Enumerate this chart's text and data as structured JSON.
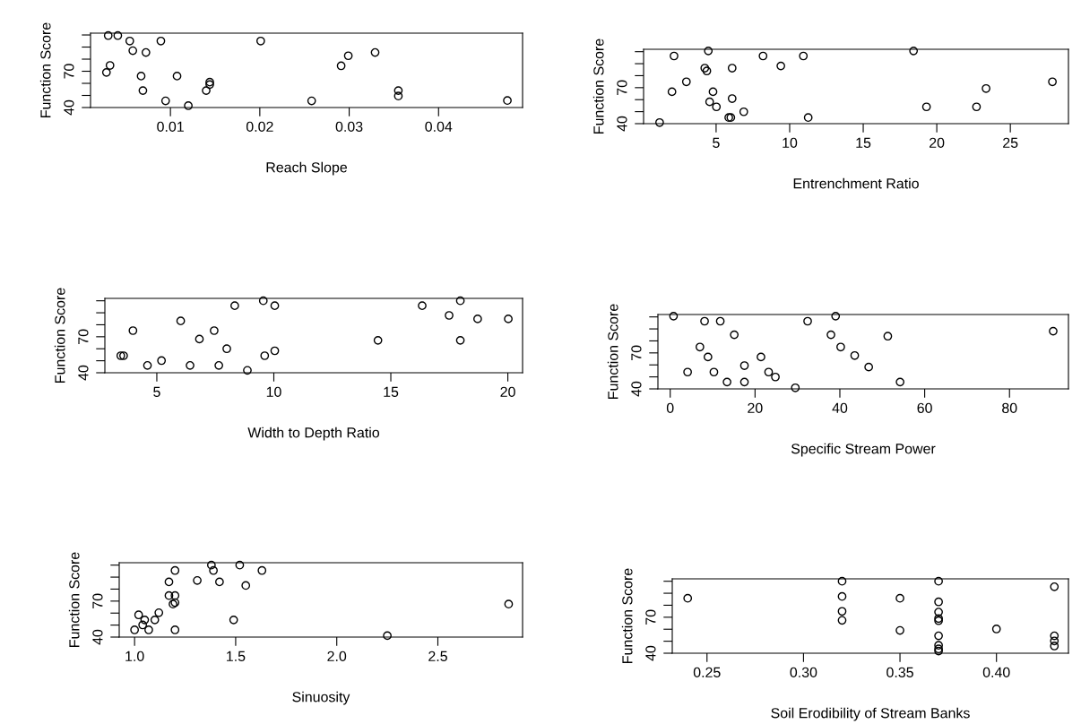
{
  "chart_data": [
    {
      "type": "scatter",
      "xlabel": "Reach Slope",
      "ylabel": "Function Score",
      "xlim": [
        0.00106,
        0.0494
      ],
      "xticks": [
        0.01,
        0.02,
        0.03,
        0.04
      ],
      "ylim": [
        40,
        101.5
      ],
      "yticks": [
        40,
        {
          "value": 50,
          "label": null
        },
        {
          "value": 60,
          "label": null
        },
        70,
        {
          "value": 80,
          "label": null
        },
        {
          "value": 90,
          "label": null
        },
        {
          "value": 100,
          "label": null
        }
      ],
      "marker": "circle",
      "series": [
        {
          "color": "#000000",
          "x": [
            0.00304,
            0.00411,
            0.00545,
            0.00579,
            0.00726,
            0.00893,
            0.0201,
            0.00324,
            0.00284,
            0.00672,
            0.01074,
            0.00692,
            0.00946,
            0.012,
            0.014,
            0.0144,
            0.0144,
            0.0291,
            0.0299,
            0.0329,
            0.0258,
            0.0355,
            0.0355,
            0.0477
          ],
          "values": [
            99.5,
            99.5,
            95,
            87,
            85.5,
            95,
            95,
            74.8,
            69,
            66,
            66,
            54,
            45.5,
            41.5,
            54,
            61,
            59,
            74.5,
            82.8,
            85.5,
            45.5,
            54,
            49.5,
            45.8
          ]
        }
      ]
    },
    {
      "type": "scatter",
      "xlabel": "Entrenchment Ratio",
      "ylabel": "Function Score",
      "xlim": [
        0.07,
        28.95
      ],
      "xticks": [
        5,
        10,
        15,
        20,
        25
      ],
      "ylim": [
        40,
        102
      ],
      "yticks": [
        40,
        {
          "value": 50,
          "label": null
        },
        {
          "value": 60,
          "label": null
        },
        70,
        {
          "value": 80,
          "label": null
        },
        {
          "value": 90,
          "label": null
        },
        {
          "value": 100,
          "label": null
        }
      ],
      "marker": "circle",
      "series": [
        {
          "color": "#000000",
          "x": [
            1.16,
            2.14,
            4.47,
            8.19,
            10.93,
            18.42,
            4.23,
            4.37,
            6.09,
            9.4,
            2.98,
            2.0,
            4.79,
            6.09,
            4.56,
            5.02,
            6.88,
            5.86,
            6.0,
            11.26,
            19.3,
            22.7,
            23.35,
            27.86
          ],
          "values": [
            40.9,
            96.4,
            100.6,
            96.4,
            96.4,
            100.6,
            86.3,
            83.9,
            86.3,
            88.1,
            74.9,
            66.6,
            66.6,
            60.9,
            58.2,
            54.0,
            49.9,
            45.1,
            45.1,
            45.1,
            54.0,
            54.0,
            69.3,
            74.9
          ]
        }
      ]
    },
    {
      "type": "scatter",
      "xlabel": "Width to Depth Ratio",
      "ylabel": "Function Score",
      "xlim": [
        2.78,
        20.63
      ],
      "xticks": [
        5,
        10,
        15,
        20
      ],
      "ylim": [
        40,
        102
      ],
      "yticks": [
        40,
        {
          "value": 50,
          "label": null
        },
        {
          "value": 60,
          "label": null
        },
        70,
        {
          "value": 80,
          "label": null
        },
        {
          "value": 90,
          "label": null
        },
        {
          "value": 100,
          "label": null
        }
      ],
      "marker": "circle",
      "series": [
        {
          "color": "#000000",
          "x": [
            3.46,
            3.58,
            3.98,
            4.6,
            5.2,
            6.02,
            6.42,
            6.82,
            7.45,
            7.65,
            7.99,
            8.33,
            8.87,
            9.55,
            9.61,
            10.04,
            10.04,
            14.45,
            16.34,
            17.49,
            17.97,
            17.97,
            18.71,
            20.02
          ],
          "values": [
            54.2,
            54.2,
            75.1,
            46.1,
            50.1,
            83.2,
            46.1,
            68.1,
            75.1,
            46.1,
            60,
            95.9,
            42,
            100,
            54.2,
            95.9,
            58.3,
            67,
            95.9,
            87.8,
            100,
            67,
            84.9,
            84.9
          ]
        }
      ]
    },
    {
      "type": "scatter",
      "xlabel": "Specific Stream Power",
      "ylabel": "Function Score",
      "xlim": [
        -2.9,
        93.9
      ],
      "xticks": [
        0,
        20,
        40,
        60,
        80
      ],
      "ylim": [
        40,
        102
      ],
      "yticks": [
        40,
        {
          "value": 50,
          "label": null
        },
        {
          "value": 60,
          "label": null
        },
        70,
        {
          "value": 80,
          "label": null
        },
        {
          "value": 90,
          "label": null
        },
        {
          "value": 100,
          "label": null
        }
      ],
      "marker": "circle",
      "series": [
        {
          "color": "#000000",
          "x": [
            0.78,
            8.1,
            11.8,
            15.1,
            32.4,
            39.0,
            37.9,
            51.3,
            90.3,
            7.0,
            8.9,
            4.1,
            10.3,
            13.4,
            17.5,
            17.5,
            21.4,
            23.2,
            24.8,
            29.5,
            40.2,
            43.5,
            46.8,
            54.2
          ],
          "values": [
            100.6,
            96.4,
            96.4,
            85.1,
            96.4,
            100.6,
            85.1,
            83.9,
            88.1,
            74.9,
            66.6,
            54.0,
            54.0,
            45.7,
            45.7,
            59.4,
            66.6,
            54.0,
            49.9,
            40.9,
            74.9,
            67.8,
            58.2,
            45.7
          ]
        }
      ]
    },
    {
      "type": "scatter",
      "xlabel": "Sinuosity",
      "ylabel": "Function Score",
      "xlim": [
        0.924,
        2.919
      ],
      "xticks": [
        {
          "value": 1,
          "label": "1.0"
        },
        1.5,
        {
          "value": 2,
          "label": "2.0"
        },
        2.5
      ],
      "ylim": [
        40,
        102
      ],
      "yticks": [
        40,
        {
          "value": 50,
          "label": null
        },
        {
          "value": 60,
          "label": null
        },
        70,
        {
          "value": 80,
          "label": null
        },
        {
          "value": 90,
          "label": null
        },
        {
          "value": 100,
          "label": null
        }
      ],
      "marker": "circle",
      "series": [
        {
          "color": "#000000",
          "x": [
            1.0,
            1.02,
            1.04,
            1.05,
            1.07,
            1.1,
            1.12,
            1.17,
            1.17,
            1.2,
            1.19,
            1.2,
            1.2,
            1.2,
            1.31,
            1.38,
            1.39,
            1.42,
            1.52,
            1.49,
            1.55,
            1.63,
            2.25,
            2.85
          ],
          "values": [
            46,
            58.5,
            50.1,
            54.3,
            46,
            54.3,
            60.3,
            86,
            74.6,
            74.6,
            67.5,
            68.7,
            95.5,
            46,
            87.2,
            100,
            95.5,
            86,
            100,
            54.3,
            83,
            95.5,
            41.2,
            67.5
          ]
        }
      ]
    },
    {
      "type": "scatter",
      "xlabel": "Soil Erodibility of Stream Banks",
      "ylabel": "Function Score",
      "xlim": [
        0.232,
        0.4373
      ],
      "xticks": [
        0.25,
        {
          "value": 0.3,
          "label": "0.30"
        },
        0.35,
        {
          "value": 0.4,
          "label": "0.40"
        }
      ],
      "ylim": [
        40,
        102
      ],
      "yticks": [
        40,
        {
          "value": 50,
          "label": null
        },
        {
          "value": 60,
          "label": null
        },
        70,
        {
          "value": 80,
          "label": null
        },
        {
          "value": 90,
          "label": null
        },
        {
          "value": 100,
          "label": null
        }
      ],
      "marker": "circle",
      "series": [
        {
          "color": "#000000",
          "x": [
            0.24,
            0.32,
            0.32,
            0.32,
            0.32,
            0.35,
            0.35,
            0.37,
            0.37,
            0.37,
            0.37,
            0.37,
            0.37,
            0.37,
            0.37,
            0.37,
            0.4,
            0.43,
            0.43,
            0.43,
            0.43
          ],
          "values": [
            85.8,
            100,
            87.3,
            74.9,
            67.4,
            85.8,
            59,
            100,
            82.8,
            74.3,
            68.9,
            67.1,
            54.5,
            46.6,
            43.6,
            41.8,
            60.2,
            95.4,
            54.5,
            50.2,
            46
          ]
        }
      ]
    }
  ]
}
